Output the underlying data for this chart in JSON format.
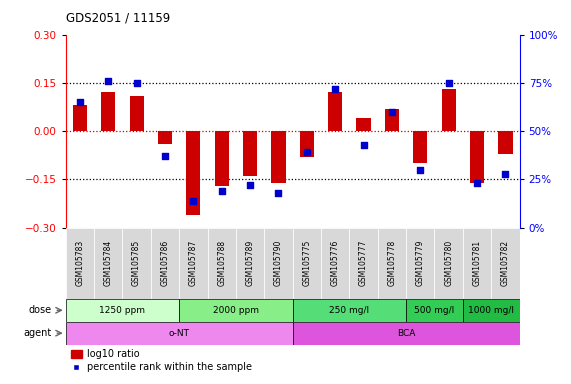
{
  "title": "GDS2051 / 11159",
  "samples": [
    "GSM105783",
    "GSM105784",
    "GSM105785",
    "GSM105786",
    "GSM105787",
    "GSM105788",
    "GSM105789",
    "GSM105790",
    "GSM105775",
    "GSM105776",
    "GSM105777",
    "GSM105778",
    "GSM105779",
    "GSM105780",
    "GSM105781",
    "GSM105782"
  ],
  "log10_ratio": [
    0.08,
    0.12,
    0.11,
    -0.04,
    -0.26,
    -0.17,
    -0.14,
    -0.16,
    -0.08,
    0.12,
    0.04,
    0.07,
    -0.1,
    0.13,
    -0.16,
    -0.07
  ],
  "percentile_rank": [
    65,
    76,
    75,
    37,
    14,
    19,
    22,
    18,
    39,
    72,
    43,
    60,
    30,
    75,
    23,
    28
  ],
  "ylim_left": [
    -0.3,
    0.3
  ],
  "ylim_right": [
    0,
    100
  ],
  "yticks_left": [
    -0.3,
    -0.15,
    0.0,
    0.15,
    0.3
  ],
  "yticks_right": [
    0,
    25,
    50,
    75,
    100
  ],
  "bar_color": "#cc0000",
  "dot_color": "#0000cc",
  "hlines": [
    -0.15,
    0.0,
    0.15
  ],
  "hline_red": 0.0,
  "dose_groups": [
    {
      "label": "1250 ppm",
      "start": 0,
      "end": 4,
      "color": "#ccffcc"
    },
    {
      "label": "2000 ppm",
      "start": 4,
      "end": 8,
      "color": "#88ee88"
    },
    {
      "label": "250 mg/l",
      "start": 8,
      "end": 12,
      "color": "#55dd77"
    },
    {
      "label": "500 mg/l",
      "start": 12,
      "end": 14,
      "color": "#33cc55"
    },
    {
      "label": "1000 mg/l",
      "start": 14,
      "end": 16,
      "color": "#22bb44"
    }
  ],
  "agent_groups": [
    {
      "label": "o-NT",
      "start": 0,
      "end": 8,
      "color": "#ee88ee"
    },
    {
      "label": "BCA",
      "start": 8,
      "end": 16,
      "color": "#dd55dd"
    }
  ]
}
